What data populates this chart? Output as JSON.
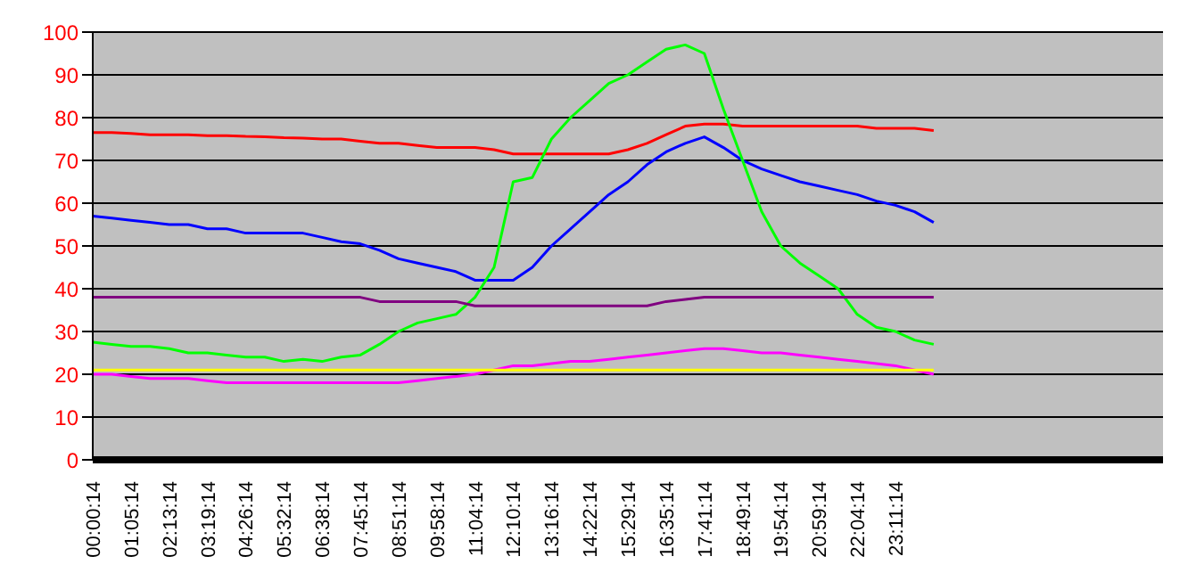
{
  "chart_data": {
    "type": "line",
    "categories": [
      "00:00:14",
      null,
      "01:05:14",
      null,
      "02:13:14",
      null,
      "03:19:14",
      null,
      "04:26:14",
      null,
      "05:32:14",
      null,
      "06:38:14",
      null,
      "07:45:14",
      null,
      "08:51:14",
      null,
      "09:58:14",
      null,
      "11:04:14",
      null,
      "12:10:14",
      null,
      "13:16:14",
      null,
      "14:22:14",
      null,
      "15:29:14",
      null,
      "16:35:14",
      null,
      "17:41:14",
      null,
      "18:49:14",
      null,
      "19:54:14",
      null,
      "20:59:14",
      null,
      "22:04:14",
      null,
      "23:11:14",
      null,
      null,
      null,
      null,
      null,
      null,
      null,
      null,
      null,
      null,
      null,
      null,
      null
    ],
    "series": [
      {
        "color": "#ff0000",
        "values": [
          76.5,
          76.5,
          76.3,
          76,
          76,
          76,
          75.8,
          75.8,
          75.6,
          75.5,
          75.3,
          75.2,
          75,
          75,
          74.5,
          74,
          74,
          73.5,
          73,
          73,
          73,
          72.5,
          71.5,
          71.5,
          71.5,
          71.5,
          71.5,
          71.5,
          72.5,
          74,
          76,
          78,
          78.5,
          78.5,
          78,
          78,
          78,
          78,
          78,
          78,
          78,
          77.5,
          77.5,
          77.5,
          77,
          null,
          null,
          null,
          null,
          null,
          null,
          null,
          null,
          null,
          null,
          null
        ]
      },
      {
        "color": "#0000ff",
        "values": [
          57,
          56.5,
          56,
          55.5,
          55,
          55,
          54,
          54,
          53,
          53,
          53,
          53,
          52,
          51,
          50.5,
          49,
          47,
          46,
          45,
          44,
          42,
          42,
          42,
          45,
          50,
          54,
          58,
          62,
          65,
          69,
          72,
          74,
          75.5,
          73,
          70,
          68,
          66.5,
          65,
          64,
          63,
          62,
          60.5,
          59.5,
          58,
          55.5,
          null,
          null,
          null,
          null,
          null,
          null,
          null,
          null,
          null,
          null,
          null
        ]
      },
      {
        "color": "#00ff00",
        "values": [
          27.5,
          27,
          26.5,
          26.5,
          26,
          25,
          25,
          24.5,
          24,
          24,
          23,
          23.5,
          23,
          24,
          24.5,
          27,
          30,
          32,
          33,
          34,
          38,
          45,
          65,
          66,
          75,
          80,
          84,
          88,
          90,
          93,
          96,
          97,
          95,
          82,
          70,
          58,
          50,
          46,
          43,
          40,
          34,
          31,
          30,
          28,
          27,
          null,
          null,
          null,
          null,
          null,
          null,
          null,
          null,
          null,
          null,
          null
        ]
      },
      {
        "color": "#800080",
        "values": [
          38,
          38,
          38,
          38,
          38,
          38,
          38,
          38,
          38,
          38,
          38,
          38,
          38,
          38,
          38,
          37,
          37,
          37,
          37,
          37,
          36,
          36,
          36,
          36,
          36,
          36,
          36,
          36,
          36,
          36,
          37,
          37.5,
          38,
          38,
          38,
          38,
          38,
          38,
          38,
          38,
          38,
          38,
          38,
          38,
          38,
          null,
          null,
          null,
          null,
          null,
          null,
          null,
          null,
          null,
          null,
          null
        ]
      },
      {
        "color": "#ff00ff",
        "values": [
          20,
          20,
          19.5,
          19,
          19,
          19,
          18.5,
          18,
          18,
          18,
          18,
          18,
          18,
          18,
          18,
          18,
          18,
          18.5,
          19,
          19.5,
          20,
          21,
          22,
          22,
          22.5,
          23,
          23,
          23.5,
          24,
          24.5,
          25,
          25.5,
          26,
          26,
          25.5,
          25,
          25,
          24.5,
          24,
          23.5,
          23,
          22.5,
          22,
          21,
          20,
          null,
          null,
          null,
          null,
          null,
          null,
          null,
          null,
          null,
          null,
          null
        ]
      },
      {
        "color": "#ffff00",
        "values": [
          21,
          21,
          21,
          21,
          21,
          21,
          21,
          21,
          21,
          21,
          21,
          21,
          21,
          21,
          21,
          21,
          21,
          21,
          21,
          21,
          21,
          21,
          21,
          21,
          21,
          21,
          21,
          21,
          21,
          21,
          21,
          21,
          21,
          21,
          21,
          21,
          21,
          21,
          21,
          21,
          21,
          21,
          21,
          21,
          21,
          null,
          null,
          null,
          null,
          null,
          null,
          null,
          null,
          null,
          null,
          null
        ]
      }
    ],
    "ylim": [
      0,
      100
    ],
    "yticks": [
      0,
      10,
      20,
      30,
      40,
      50,
      60,
      70,
      80,
      90,
      100
    ],
    "grid": "y",
    "marker": "none",
    "line_style": "solid",
    "legend": false
  }
}
